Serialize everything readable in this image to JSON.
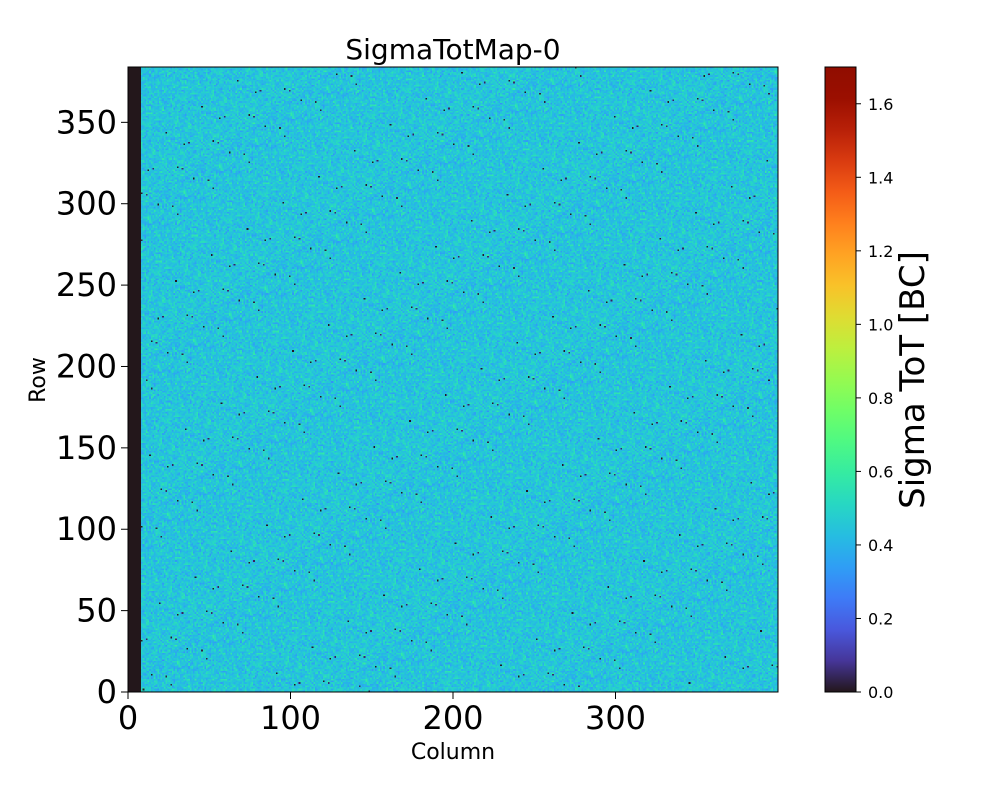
{
  "chart_data": {
    "type": "heatmap",
    "title": "SigmaTotMap-0",
    "xlabel": "Column",
    "ylabel": "Row",
    "xlim": [
      0,
      400
    ],
    "ylim": [
      0,
      384
    ],
    "xticks": [
      {
        "value": 0,
        "label": "0"
      },
      {
        "value": 100,
        "label": "100"
      },
      {
        "value": 200,
        "label": "200"
      },
      {
        "value": 300,
        "label": "300"
      }
    ],
    "yticks": [
      {
        "value": 0,
        "label": "0"
      },
      {
        "value": 50,
        "label": "50"
      },
      {
        "value": 100,
        "label": "100"
      },
      {
        "value": 150,
        "label": "150"
      },
      {
        "value": 200,
        "label": "200"
      },
      {
        "value": 250,
        "label": "250"
      },
      {
        "value": 300,
        "label": "300"
      },
      {
        "value": 350,
        "label": "350"
      }
    ],
    "colormap": "turbo",
    "colorbar": {
      "label": "Sigma ToT [BC]",
      "range": [
        0,
        1.7
      ],
      "ticks": [
        {
          "value": 0.0,
          "label": "0.0"
        },
        {
          "value": 0.2,
          "label": "0.2"
        },
        {
          "value": 0.4,
          "label": "0.4"
        },
        {
          "value": 0.6,
          "label": "0.6"
        },
        {
          "value": 0.8,
          "label": "0.8"
        },
        {
          "value": 1.0,
          "label": "1.0"
        },
        {
          "value": 1.2,
          "label": "1.2"
        },
        {
          "value": 1.4,
          "label": "1.4"
        },
        {
          "value": 1.6,
          "label": "1.6"
        }
      ]
    },
    "dead_columns": [
      0,
      8
    ],
    "typical_value": 0.45,
    "value_spread": 0.1,
    "low_outlier_value": 0.05
  }
}
